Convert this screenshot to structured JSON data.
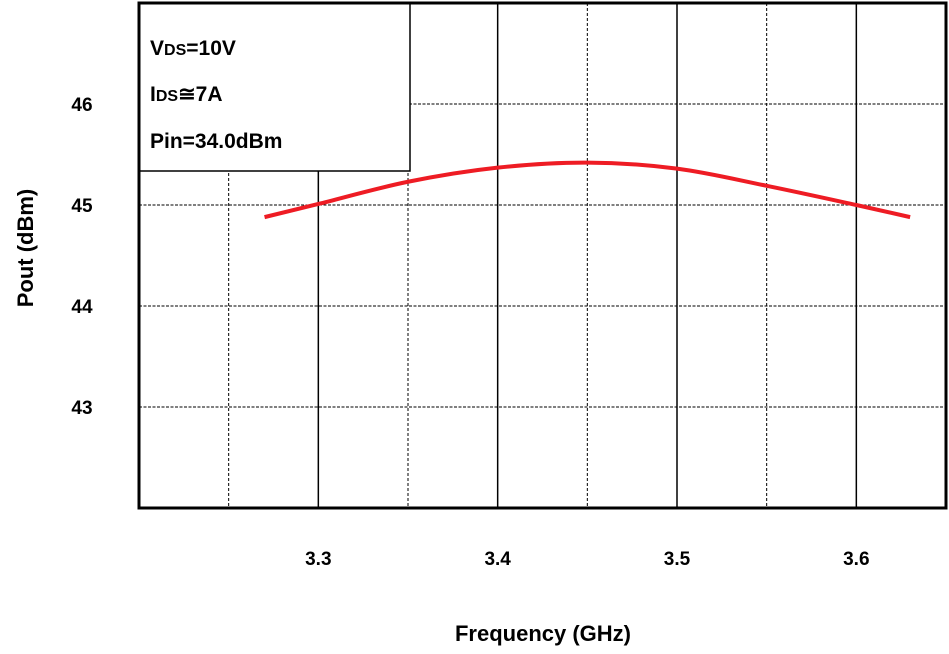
{
  "chart_data": {
    "type": "line",
    "xlabel": "Frequency (GHz)",
    "ylabel": "Pout (dBm)",
    "xlim": [
      3.2,
      3.65
    ],
    "ylim": [
      42,
      47
    ],
    "xticks": [
      "3.3",
      "3.4",
      "3.5",
      "3.6"
    ],
    "yticks": [
      "43",
      "44",
      "45",
      "46"
    ],
    "grid": true,
    "series": [
      {
        "color": "#ee1c24",
        "x": [
          3.27,
          3.3,
          3.35,
          3.4,
          3.45,
          3.5,
          3.55,
          3.6,
          3.63
        ],
        "y": [
          44.88,
          45.01,
          45.23,
          45.37,
          45.42,
          45.36,
          45.19,
          45.0,
          44.88
        ]
      }
    ],
    "annotations": {
      "line1_main": "V",
      "line1_sub": "DS",
      "line1_rest": "=10V",
      "line2_main": "I",
      "line2_sub": "DS",
      "line2_rest": "≅7A",
      "line3": "Pin=34.0dBm"
    }
  }
}
